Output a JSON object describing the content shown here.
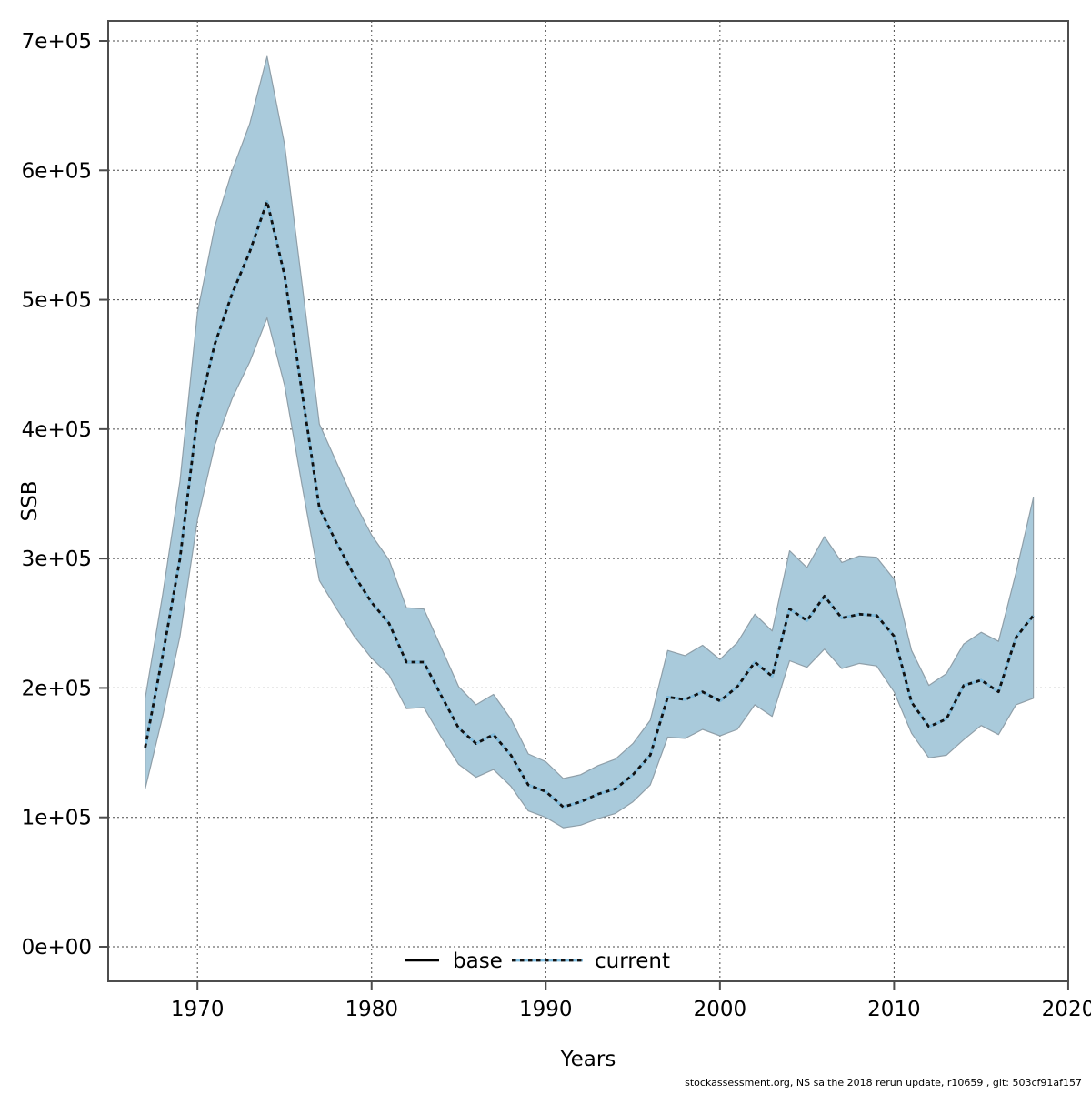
{
  "footer": {
    "text": "stockassessment.org, NS saithe 2018 rerun update, r10659 , git: 503cf91af157"
  },
  "colors": {
    "band_fill": "#a9cadb",
    "band_edge": "#8f9fa9",
    "current_blue": "#82bedf",
    "base_black": "#000000",
    "dash_black": "#111111",
    "grid": "#4a4a4a",
    "frame": "#4d4d4d"
  },
  "chart_data": {
    "type": "line",
    "title": "",
    "xlabel": "Years",
    "ylabel": "SSB",
    "grid": true,
    "legend_position": "bottom-center",
    "xlim": [
      1964.9,
      2020
    ],
    "ylim": [
      -27000,
      715000
    ],
    "xticks": [
      1970,
      1980,
      1990,
      2000,
      2010,
      2020
    ],
    "ytick_labels": [
      "0e+00",
      "1e+05",
      "2e+05",
      "3e+05",
      "4e+05",
      "5e+05",
      "6e+05",
      "7e+05"
    ],
    "ytick_values": [
      0,
      100000,
      200000,
      300000,
      400000,
      500000,
      600000,
      700000
    ],
    "legend": [
      {
        "label": "base",
        "style": "solid-black"
      },
      {
        "label": "current",
        "style": "dotted-blue"
      }
    ],
    "x": [
      1967,
      1968,
      1969,
      1970,
      1971,
      1972,
      1973,
      1974,
      1975,
      1976,
      1977,
      1978,
      1979,
      1980,
      1981,
      1982,
      1983,
      1984,
      1985,
      1986,
      1987,
      1988,
      1989,
      1990,
      1991,
      1992,
      1993,
      1994,
      1995,
      1996,
      1997,
      1998,
      1999,
      2000,
      2001,
      2002,
      2003,
      2004,
      2005,
      2006,
      2007,
      2008,
      2009,
      2010,
      2011,
      2012,
      2013,
      2014,
      2015,
      2016,
      2017,
      2018
    ],
    "series": [
      {
        "name": "base",
        "style": "solid",
        "color": "#000000",
        "values": [
          154000,
          225000,
          300000,
          410000,
          466000,
          505000,
          537000,
          576000,
          519000,
          429000,
          339000,
          312000,
          287000,
          266000,
          250000,
          220000,
          220000,
          194000,
          169000,
          157000,
          164000,
          148000,
          125000,
          120000,
          108000,
          112000,
          118000,
          122000,
          133000,
          148000,
          193000,
          191000,
          197000,
          190000,
          201000,
          220000,
          209000,
          261000,
          252000,
          271000,
          254000,
          257000,
          256000,
          240000,
          189000,
          170000,
          176000,
          202000,
          206000,
          197000,
          239000,
          256000
        ]
      },
      {
        "name": "current",
        "style": "dotted",
        "color": "#82bedf",
        "values": [
          154000,
          225000,
          300000,
          410000,
          466000,
          505000,
          537000,
          576000,
          519000,
          429000,
          339000,
          312000,
          287000,
          266000,
          250000,
          220000,
          220000,
          194000,
          169000,
          157000,
          164000,
          148000,
          125000,
          120000,
          108000,
          112000,
          118000,
          122000,
          133000,
          148000,
          193000,
          191000,
          197000,
          190000,
          201000,
          220000,
          209000,
          261000,
          252000,
          271000,
          254000,
          257000,
          256000,
          240000,
          189000,
          170000,
          176000,
          202000,
          206000,
          197000,
          239000,
          256000
        ]
      }
    ],
    "ci_band": {
      "series": "current",
      "fill": "#a9cadb",
      "low": [
        122000,
        178000,
        240000,
        330000,
        388000,
        424000,
        452000,
        486000,
        434000,
        357000,
        283000,
        261000,
        240000,
        223000,
        210000,
        184000,
        185000,
        162000,
        141000,
        131000,
        137000,
        124000,
        105000,
        100000,
        92000,
        94000,
        99000,
        103000,
        112000,
        125000,
        162000,
        161000,
        168000,
        163000,
        168000,
        187000,
        178000,
        221000,
        216000,
        230000,
        215000,
        219000,
        217000,
        197000,
        165000,
        146000,
        148000,
        160000,
        171000,
        164000,
        187000,
        192000
      ],
      "high": [
        192000,
        272000,
        360000,
        490000,
        557000,
        600000,
        636000,
        688000,
        620000,
        513000,
        404000,
        374000,
        344000,
        318000,
        299000,
        262000,
        261000,
        231000,
        201000,
        187000,
        195000,
        176000,
        149000,
        143000,
        130000,
        133000,
        140000,
        145000,
        157000,
        175000,
        229000,
        225000,
        233000,
        222000,
        235000,
        257000,
        244000,
        306000,
        293000,
        317000,
        297000,
        302000,
        301000,
        284000,
        229000,
        202000,
        211000,
        234000,
        243000,
        236000,
        289000,
        347000
      ]
    }
  }
}
